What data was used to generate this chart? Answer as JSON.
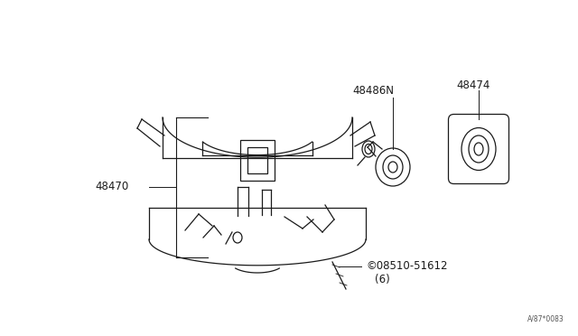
{
  "bg_color": "#ffffff",
  "line_color": "#1a1a1a",
  "text_color": "#1a1a1a",
  "fig_width": 6.4,
  "fig_height": 3.72,
  "dpi": 100,
  "watermark": "A/87*0083",
  "label_48470": "48470",
  "label_48486N": "48486N",
  "label_48474": "48474",
  "label_screw": "©08510-51612",
  "label_screw_sub": "(6)"
}
